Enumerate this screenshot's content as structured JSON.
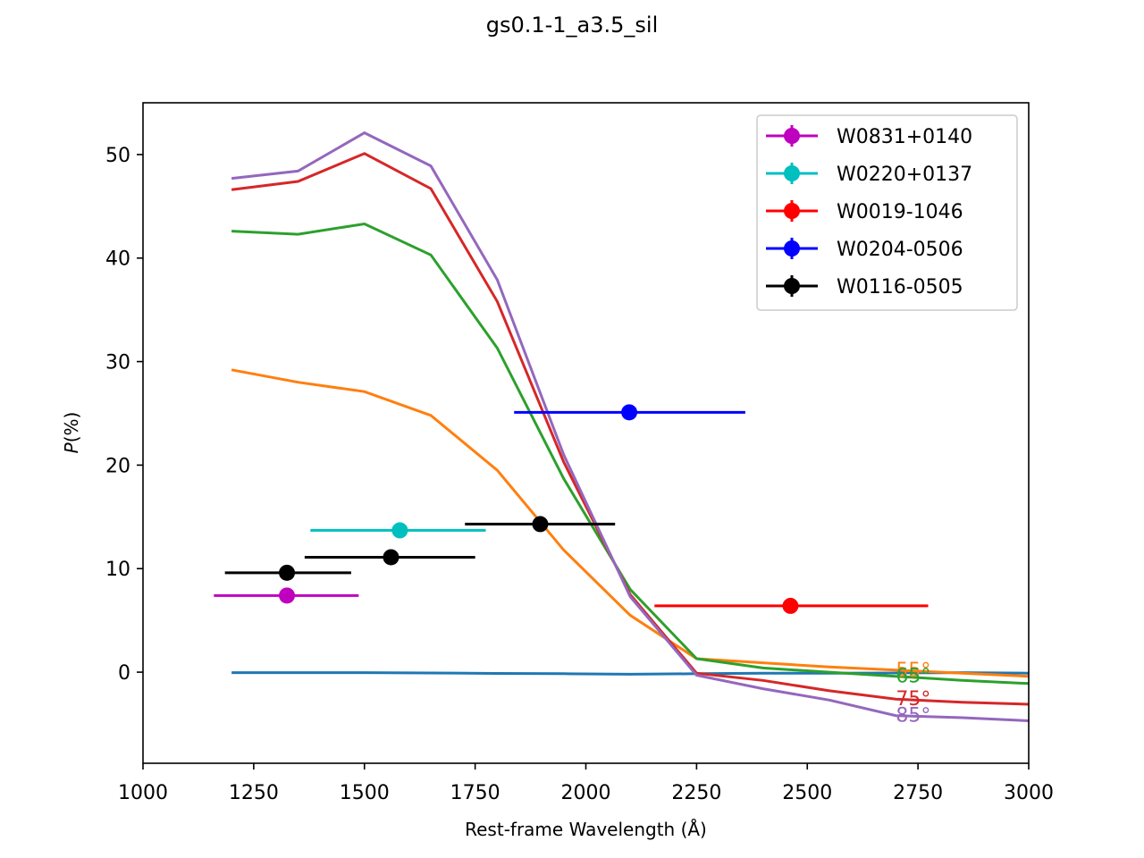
{
  "chart_data": {
    "type": "line",
    "title": "gs0.1-1_a3.5_sil",
    "xlabel": "Rest-frame Wavelength (Å)",
    "ylabel_italic": "P",
    "ylabel_rest": "(%)",
    "xlim": [
      1000,
      3000
    ],
    "ylim": [
      -8.8,
      55
    ],
    "xticks": [
      1000,
      1250,
      1500,
      1750,
      2000,
      2250,
      2500,
      2750,
      3000
    ],
    "yticks": [
      0,
      10,
      20,
      30,
      40,
      50
    ],
    "grid": false,
    "legend_position": "top-right",
    "model_curves": [
      {
        "label": "",
        "color": "#1f77b4",
        "x": [
          1200,
          1350,
          1500,
          1650,
          1800,
          1950,
          2100,
          2250,
          2400,
          2550,
          2700,
          2850,
          3000
        ],
        "y": [
          -0.05,
          -0.05,
          -0.05,
          -0.08,
          -0.12,
          -0.15,
          -0.2,
          -0.15,
          -0.1,
          -0.1,
          -0.08,
          -0.05,
          -0.1
        ]
      },
      {
        "label": "55°",
        "color": "#ff7f0e",
        "x": [
          1200,
          1350,
          1500,
          1650,
          1800,
          1950,
          2100,
          2250,
          2400,
          2550,
          2700,
          2850,
          3000
        ],
        "y": [
          29.2,
          28.0,
          27.1,
          24.8,
          19.5,
          11.8,
          5.5,
          1.3,
          0.9,
          0.5,
          0.2,
          -0.1,
          -0.4
        ]
      },
      {
        "label": "65°",
        "color": "#2ca02c",
        "x": [
          1200,
          1350,
          1500,
          1650,
          1800,
          1950,
          2100,
          2250,
          2400,
          2550,
          2700,
          2850,
          3000
        ],
        "y": [
          42.6,
          42.3,
          43.3,
          40.3,
          31.3,
          18.7,
          8.0,
          1.3,
          0.4,
          0.0,
          -0.4,
          -0.8,
          -1.1
        ]
      },
      {
        "label": "75°",
        "color": "#d62728",
        "x": [
          1200,
          1350,
          1500,
          1650,
          1800,
          1950,
          2100,
          2250,
          2400,
          2550,
          2700,
          2850,
          3000
        ],
        "y": [
          46.6,
          47.4,
          50.1,
          46.7,
          35.8,
          20.3,
          7.5,
          -0.1,
          -0.8,
          -1.8,
          -2.6,
          -2.9,
          -3.1
        ]
      },
      {
        "label": "85°",
        "color": "#9467bd",
        "x": [
          1200,
          1350,
          1500,
          1650,
          1800,
          1950,
          2100,
          2250,
          2400,
          2550,
          2700,
          2850,
          3000
        ],
        "y": [
          47.7,
          48.4,
          52.1,
          48.9,
          37.9,
          21.0,
          7.3,
          -0.3,
          -1.6,
          -2.7,
          -4.2,
          -4.4,
          -4.7
        ]
      }
    ],
    "curve_label_x": 2700,
    "observations": [
      {
        "name": "W0831+0140",
        "color": "#bf00bf",
        "x": 1325,
        "y": 7.4,
        "xmin": 1160,
        "xmax": 1487
      },
      {
        "name": "W0220+0137",
        "color": "#00bfbf",
        "x": 1580,
        "y": 13.7,
        "xmin": 1378,
        "xmax": 1774
      },
      {
        "name": "W0019-1046",
        "color": "#ff0000",
        "x": 2462,
        "y": 6.4,
        "xmin": 2155,
        "xmax": 2773
      },
      {
        "name": "W0204-0506",
        "color": "#0000ff",
        "x": 2098,
        "y": 25.1,
        "xmin": 1838,
        "xmax": 2360
      },
      {
        "name": "W0116-0505",
        "color": "#000000",
        "x": 1325,
        "y": 9.6,
        "xmin": 1185,
        "xmax": 1470
      },
      {
        "name": "W0116-0505",
        "color": "#000000",
        "x": 1560,
        "y": 11.1,
        "xmin": 1365,
        "xmax": 1750
      },
      {
        "name": "W0116-0505",
        "color": "#000000",
        "x": 1897,
        "y": 14.3,
        "xmin": 1727,
        "xmax": 2066
      }
    ],
    "legend": [
      {
        "name": "W0831+0140",
        "color": "#bf00bf"
      },
      {
        "name": "W0220+0137",
        "color": "#00bfbf"
      },
      {
        "name": "W0019-1046",
        "color": "#ff0000"
      },
      {
        "name": "W0204-0506",
        "color": "#0000ff"
      },
      {
        "name": "W0116-0505",
        "color": "#000000"
      }
    ]
  }
}
